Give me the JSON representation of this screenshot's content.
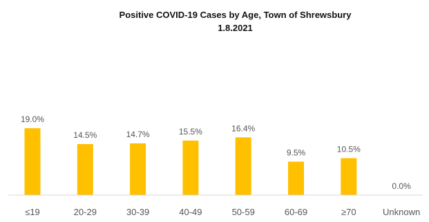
{
  "chart_data": {
    "type": "bar",
    "title": "Positive COVID-19 Cases by Age, Town of Shrewsbury",
    "subtitle": "1.8.2021",
    "categories": [
      "≤19",
      "20-29",
      "30-39",
      "40-49",
      "50-59",
      "60-69",
      "≥70",
      "Unknown"
    ],
    "values": [
      19.0,
      14.5,
      14.7,
      15.5,
      16.4,
      9.5,
      10.5,
      0.0
    ],
    "data_labels": [
      "19.0%",
      "14.5%",
      "14.7%",
      "15.5%",
      "16.4%",
      "9.5%",
      "10.5%",
      "0.0%"
    ],
    "xlabel": "",
    "ylabel": "",
    "ylim": [
      0,
      19.0
    ],
    "grid": false,
    "bar_color": "#FFC000",
    "axis_color": "#D9D9D9"
  }
}
